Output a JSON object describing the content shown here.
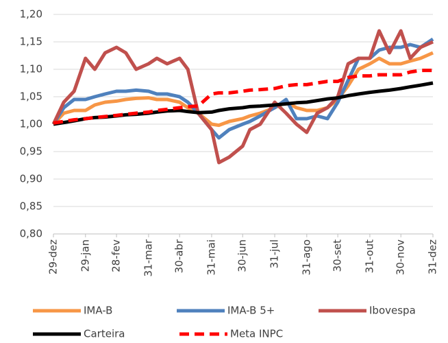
{
  "chart_data": {
    "type": "line",
    "x": [
      0,
      10,
      20,
      31,
      40,
      50,
      61,
      70,
      80,
      92,
      100,
      110,
      122,
      130,
      140,
      153,
      160,
      170,
      183,
      190,
      200,
      214,
      225,
      235,
      245,
      255,
      265,
      275,
      285,
      295,
      306,
      315,
      325,
      336,
      345,
      355,
      367
    ],
    "xlim": [
      0,
      367
    ],
    "xticks": [
      {
        "value": 0,
        "label": "29-dez"
      },
      {
        "value": 31,
        "label": "29-jan"
      },
      {
        "value": 61,
        "label": "28-fev"
      },
      {
        "value": 92,
        "label": "31-mar"
      },
      {
        "value": 122,
        "label": "30-abr"
      },
      {
        "value": 153,
        "label": "31-mai"
      },
      {
        "value": 183,
        "label": "30-jun"
      },
      {
        "value": 214,
        "label": "31-jul"
      },
      {
        "value": 245,
        "label": "31-ago"
      },
      {
        "value": 275,
        "label": "30-set"
      },
      {
        "value": 306,
        "label": "31-out"
      },
      {
        "value": 336,
        "label": "30-nov"
      },
      {
        "value": 367,
        "label": "31-dez"
      }
    ],
    "ylim": [
      0.8,
      1.2
    ],
    "yticks": [
      {
        "value": 0.8,
        "label": "0,80"
      },
      {
        "value": 0.85,
        "label": "0,85"
      },
      {
        "value": 0.9,
        "label": "0,90"
      },
      {
        "value": 0.95,
        "label": "0,95"
      },
      {
        "value": 1.0,
        "label": "1,00"
      },
      {
        "value": 1.05,
        "label": "1,05"
      },
      {
        "value": 1.1,
        "label": "1,10"
      },
      {
        "value": 1.15,
        "label": "1,15"
      },
      {
        "value": 1.2,
        "label": "1,20"
      }
    ],
    "grid": true,
    "legend": "bottom",
    "series": [
      {
        "name": "IMA-B",
        "color": "#f79646",
        "dash": false,
        "values": [
          1.0,
          1.02,
          1.025,
          1.025,
          1.035,
          1.04,
          1.042,
          1.045,
          1.047,
          1.048,
          1.045,
          1.045,
          1.04,
          1.03,
          1.02,
          1.0,
          0.998,
          1.005,
          1.01,
          1.015,
          1.02,
          1.03,
          1.04,
          1.03,
          1.025,
          1.025,
          1.03,
          1.045,
          1.07,
          1.1,
          1.11,
          1.12,
          1.11,
          1.11,
          1.115,
          1.12,
          1.13
        ]
      },
      {
        "name": "IMA-B 5+",
        "color": "#4f81bd",
        "dash": false,
        "values": [
          1.0,
          1.03,
          1.045,
          1.045,
          1.05,
          1.055,
          1.06,
          1.06,
          1.062,
          1.06,
          1.055,
          1.055,
          1.05,
          1.04,
          1.02,
          0.99,
          0.975,
          0.99,
          1.0,
          1.005,
          1.015,
          1.03,
          1.045,
          1.01,
          1.01,
          1.015,
          1.01,
          1.04,
          1.08,
          1.12,
          1.12,
          1.135,
          1.14,
          1.14,
          1.145,
          1.14,
          1.155
        ]
      },
      {
        "name": "Ibovespa",
        "color": "#c0504d",
        "dash": false,
        "values": [
          1.0,
          1.04,
          1.06,
          1.12,
          1.1,
          1.13,
          1.14,
          1.13,
          1.1,
          1.11,
          1.12,
          1.11,
          1.12,
          1.1,
          1.02,
          0.99,
          0.93,
          0.94,
          0.96,
          0.99,
          1.0,
          1.04,
          1.02,
          1.0,
          0.985,
          1.02,
          1.03,
          1.05,
          1.11,
          1.12,
          1.12,
          1.17,
          1.13,
          1.17,
          1.12,
          1.14,
          1.15
        ]
      },
      {
        "name": "Carteira",
        "color": "#000000",
        "dash": false,
        "values": [
          1.0,
          1.003,
          1.006,
          1.01,
          1.012,
          1.013,
          1.015,
          1.017,
          1.018,
          1.02,
          1.022,
          1.024,
          1.025,
          1.023,
          1.021,
          1.022,
          1.025,
          1.028,
          1.03,
          1.032,
          1.033,
          1.035,
          1.037,
          1.039,
          1.04,
          1.043,
          1.046,
          1.048,
          1.052,
          1.055,
          1.058,
          1.06,
          1.062,
          1.065,
          1.068,
          1.071,
          1.075
        ]
      },
      {
        "name": "Meta INPC",
        "color": "#ff0000",
        "dash": true,
        "values": [
          1.002,
          1.005,
          1.008,
          1.01,
          1.012,
          1.014,
          1.016,
          1.018,
          1.02,
          1.022,
          1.025,
          1.027,
          1.03,
          1.032,
          1.033,
          1.055,
          1.057,
          1.057,
          1.06,
          1.062,
          1.063,
          1.065,
          1.07,
          1.072,
          1.072,
          1.075,
          1.078,
          1.078,
          1.085,
          1.088,
          1.088,
          1.09,
          1.09,
          1.09,
          1.095,
          1.098,
          1.098
        ]
      }
    ]
  }
}
